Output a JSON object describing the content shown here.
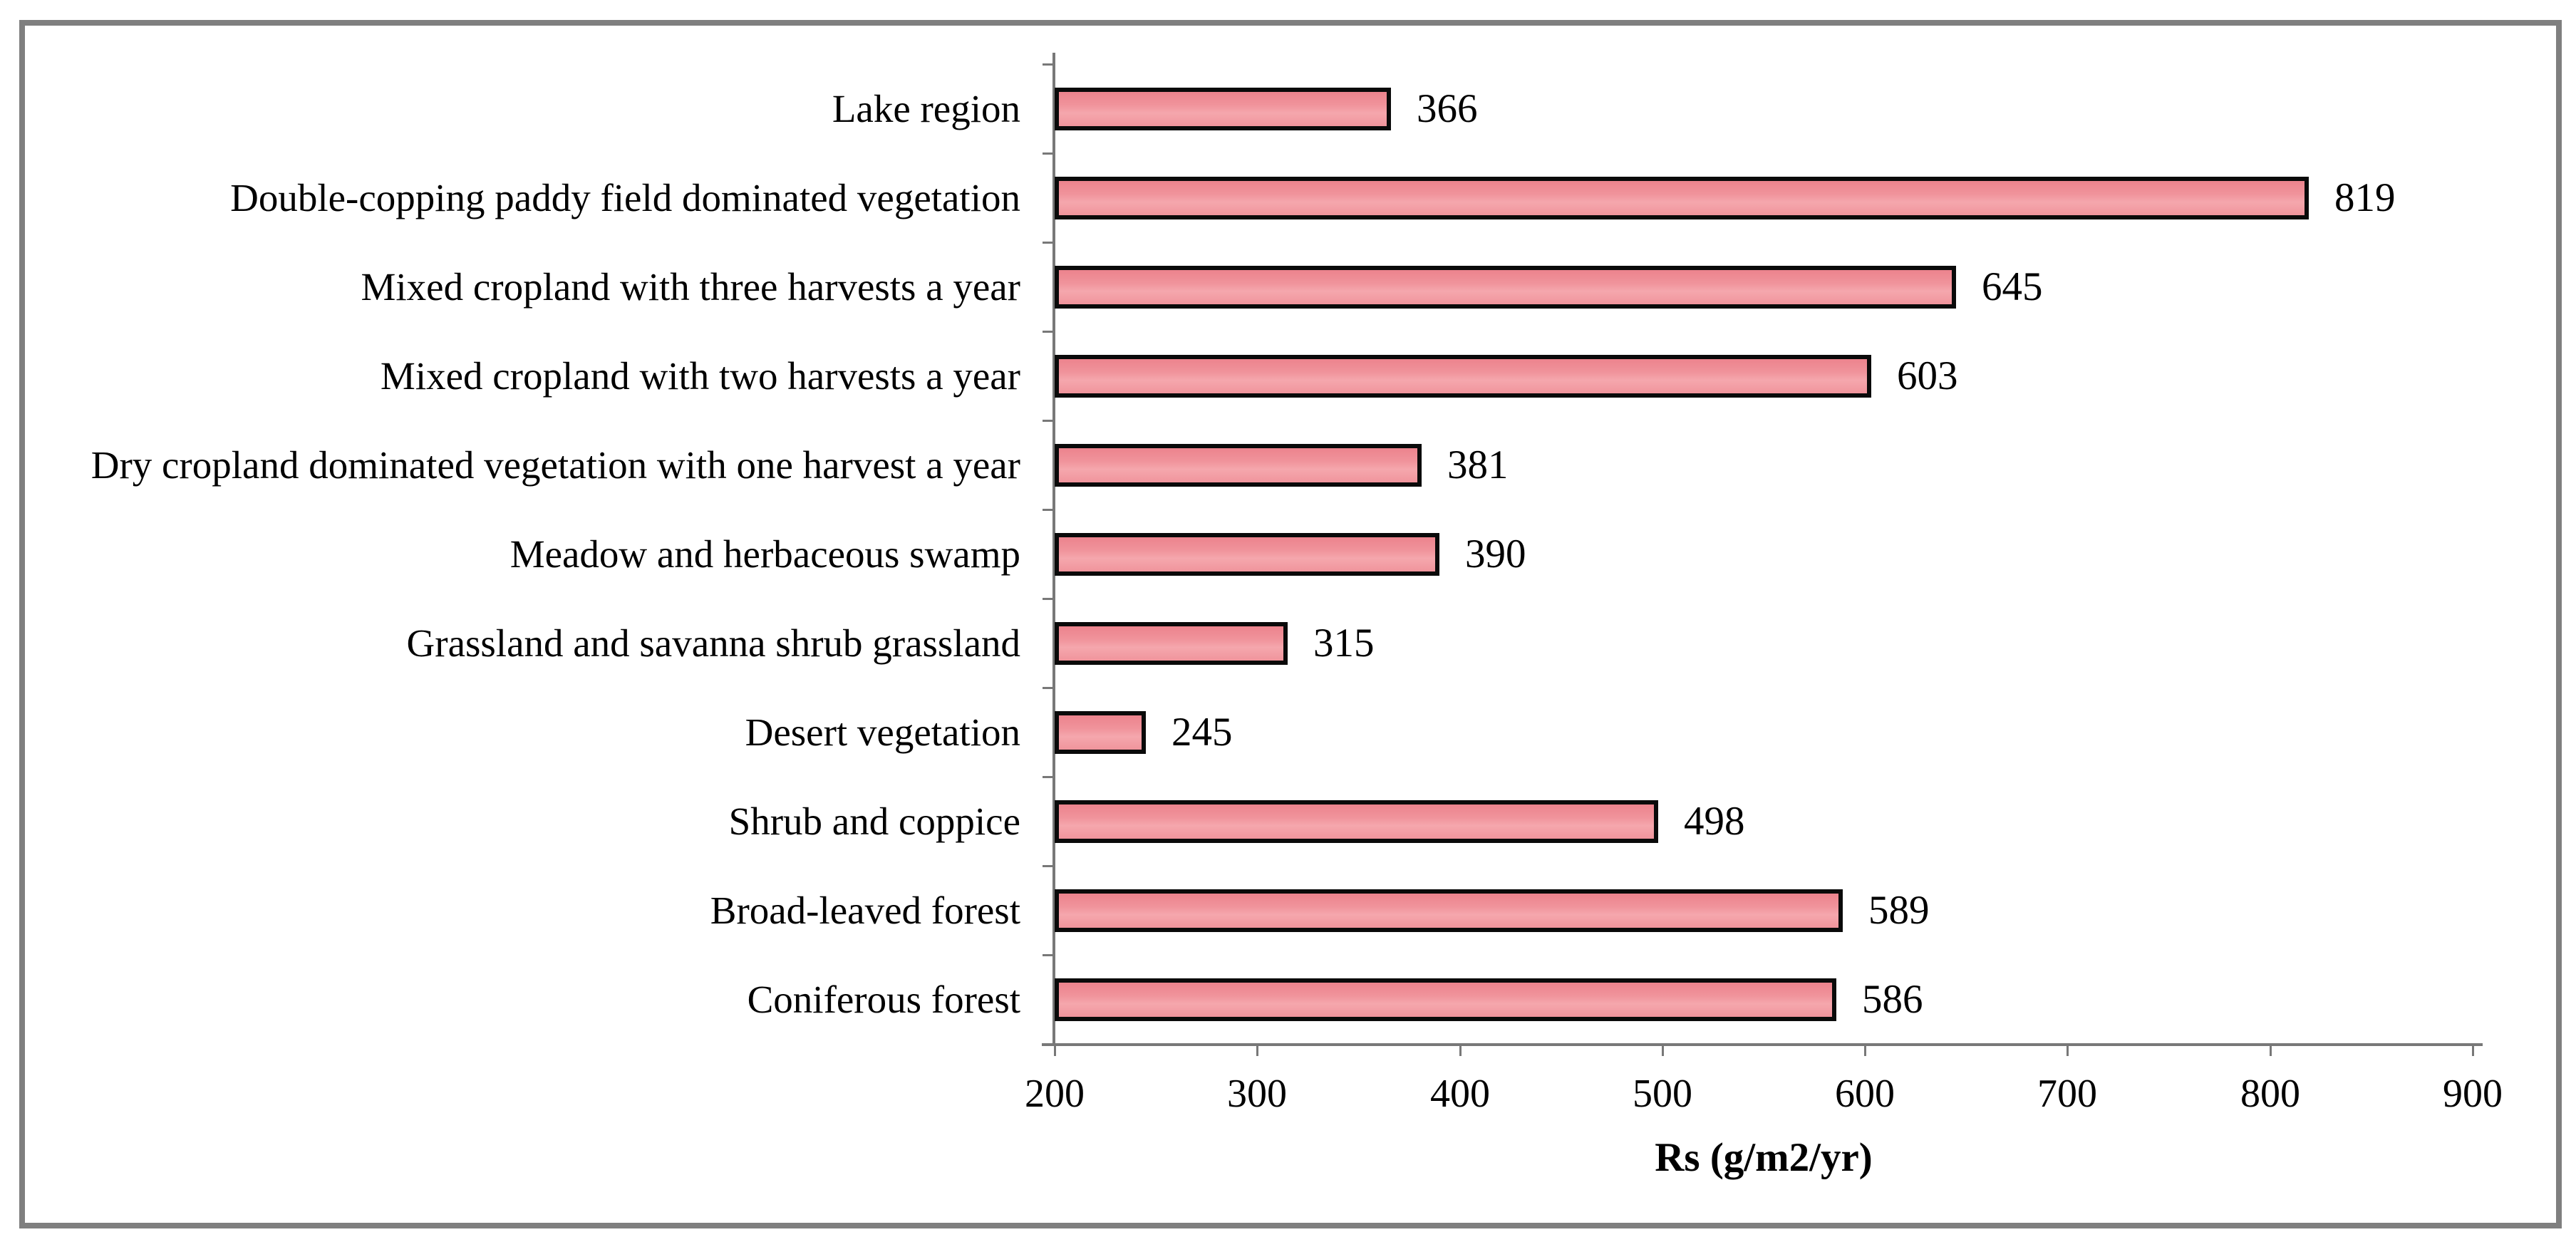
{
  "figure": {
    "background": "#ffffff",
    "frame_border_color": "#7f7f7f",
    "axis_color": "#787878",
    "bar_fill": "#f0939b",
    "bar_border": "#0a0a0a",
    "text_color": "#000000"
  },
  "chart_data": {
    "type": "bar",
    "orientation": "horizontal",
    "title": "",
    "xlabel": "Rs (g/m2/yr)",
    "ylabel": "",
    "categories": [
      "Lake region",
      "Double-copping paddy field dominated vegetation",
      "Mixed cropland with three harvests a year",
      "Mixed cropland with two harvests a year",
      "Dry cropland dominated vegetation with one harvest a year",
      "Meadow and herbaceous swamp",
      "Grassland and savanna shrub grassland",
      "Desert vegetation",
      "Shrub and coppice",
      "Broad-leaved forest",
      "Coniferous forest"
    ],
    "values": [
      366,
      819,
      645,
      603,
      381,
      390,
      315,
      245,
      498,
      589,
      586
    ],
    "value_labels": [
      "366",
      "819",
      "645",
      "603",
      "381",
      "390",
      "315",
      "245",
      "498",
      "589",
      "586"
    ],
    "xlim": [
      200,
      900
    ],
    "xticks": [
      200,
      300,
      400,
      500,
      600,
      700,
      800,
      900
    ],
    "xtick_labels": [
      "200",
      "300",
      "400",
      "500",
      "600",
      "700",
      "800",
      "900"
    ],
    "grid": "off",
    "legend": "none",
    "data_labels_shown": true
  }
}
